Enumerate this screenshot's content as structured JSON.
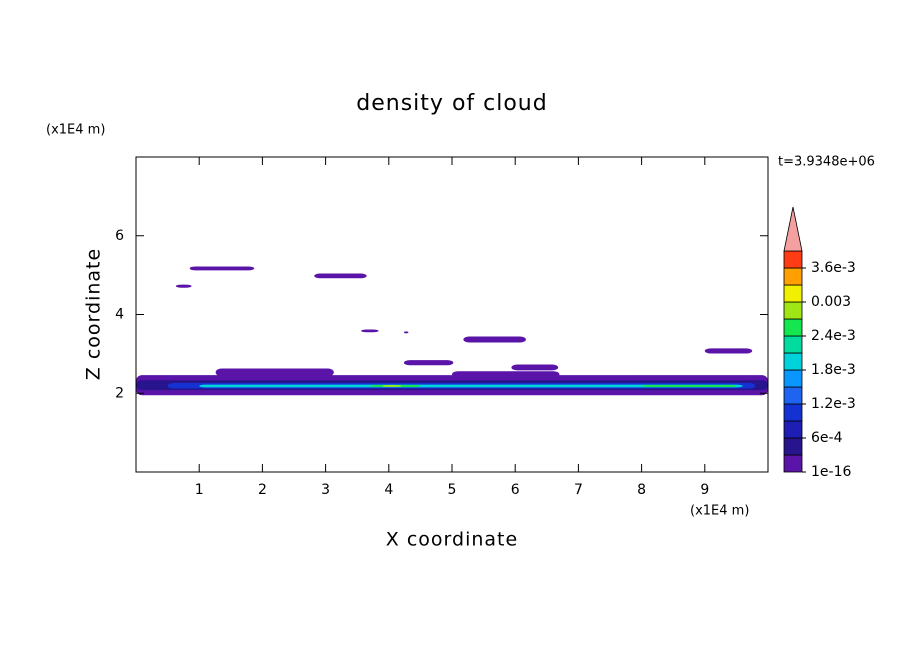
{
  "chart_data": {
    "type": "contour",
    "title": "density of cloud",
    "x_label": "X coordinate",
    "y_label": "Z coordinate",
    "x_unit": "(x1E4 m)",
    "y_unit": "(x1E4 m)",
    "time_label": "t=3.9348e+06",
    "xlim": [
      0,
      10
    ],
    "ylim": [
      0,
      8
    ],
    "xticks": [
      1,
      2,
      3,
      4,
      5,
      6,
      7,
      8,
      9
    ],
    "yticks": [
      2,
      4,
      6
    ],
    "levels": [
      1e-16,
      0.0003,
      0.0006,
      0.0009,
      0.0012,
      0.0015,
      0.0018,
      0.0021,
      0.0024,
      0.0027,
      0.003,
      0.0033,
      0.0036,
      0.0039
    ],
    "colors": [
      "#5a14a8",
      "#28148c",
      "#1e1eb4",
      "#1432d2",
      "#1e64f0",
      "#0a96ff",
      "#00d2dc",
      "#00dca0",
      "#14e650",
      "#a0e614",
      "#f0f000",
      "#ffa000",
      "#ff3c14"
    ],
    "over_color": "#f4a0a0",
    "colorbar_ticks": [
      {
        "value": 1e-16,
        "label": "1e-16"
      },
      {
        "value": 0.0006,
        "label": "6e-4"
      },
      {
        "value": 0.0012,
        "label": "1.2e-3"
      },
      {
        "value": 0.0018,
        "label": "1.8e-3"
      },
      {
        "value": 0.0024,
        "label": "2.4e-3"
      },
      0.003,
      {
        "value": 0.0036,
        "label": "3.6e-3"
      }
    ],
    "cells": [
      {
        "x": [
          0,
          10
        ],
        "z": [
          1.95,
          2.46
        ],
        "value": 0.0001
      },
      {
        "x": [
          0.85,
          1.87
        ],
        "z": [
          5.12,
          5.22
        ],
        "value": 0.0001
      },
      {
        "x": [
          0.63,
          0.88
        ],
        "z": [
          4.68,
          4.76
        ],
        "value": 0.0001
      },
      {
        "x": [
          2.82,
          3.65
        ],
        "z": [
          4.92,
          5.04
        ],
        "value": 0.0001
      },
      {
        "x": [
          3.56,
          3.84
        ],
        "z": [
          3.55,
          3.62
        ],
        "value": 0.0001
      },
      {
        "x": [
          4.24,
          4.31
        ],
        "z": [
          3.52,
          3.57
        ],
        "value": 0.0001
      },
      {
        "x": [
          4.24,
          5.02
        ],
        "z": [
          2.71,
          2.84
        ],
        "value": 0.0001
      },
      {
        "x": [
          5.18,
          6.17
        ],
        "z": [
          3.29,
          3.44
        ],
        "value": 0.0001
      },
      {
        "x": [
          5.94,
          6.68
        ],
        "z": [
          2.58,
          2.73
        ],
        "value": 0.0001
      },
      {
        "x": [
          9.0,
          9.75
        ],
        "z": [
          3.01,
          3.14
        ],
        "value": 0.0001
      },
      {
        "x": [
          1.26,
          3.13
        ],
        "z": [
          2.43,
          2.63
        ],
        "value": 0.0001
      },
      {
        "x": [
          5.0,
          6.7
        ],
        "z": [
          2.4,
          2.56
        ],
        "value": 0.0001
      },
      {
        "x": [
          0,
          10
        ],
        "z": [
          2.08,
          2.33
        ],
        "value": 0.0005
      },
      {
        "x": [
          0.5,
          9.8
        ],
        "z": [
          2.12,
          2.26
        ],
        "value": 0.001
      },
      {
        "x": [
          1.0,
          9.6
        ],
        "z": [
          2.15,
          2.22
        ],
        "value": 0.0019
      },
      {
        "x": [
          3.7,
          4.5
        ],
        "z": [
          2.16,
          2.21
        ],
        "value": 0.0025
      },
      {
        "x": [
          8.0,
          9.5
        ],
        "z": [
          2.16,
          2.21
        ],
        "value": 0.0025
      },
      {
        "x": [
          3.9,
          4.2
        ],
        "z": [
          2.17,
          2.2
        ],
        "value": 0.0031
      }
    ]
  }
}
